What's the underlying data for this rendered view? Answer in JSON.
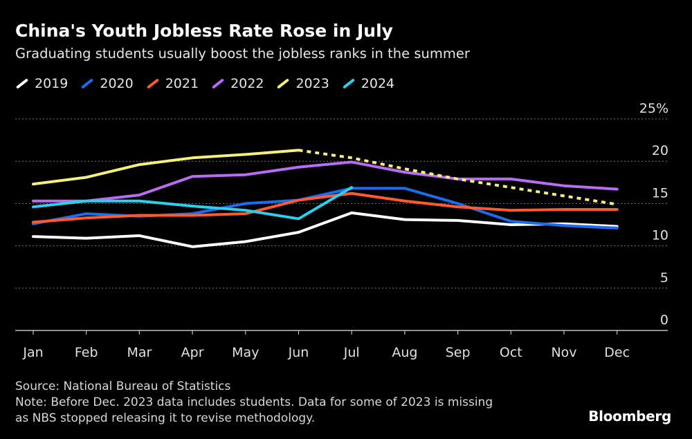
{
  "header": {
    "title": "China's Youth Jobless Rate Rose in July",
    "subtitle": "Graduating students usually boost the jobless ranks in the summer"
  },
  "footer": {
    "source": "Source: National Bureau of Statistics",
    "note_line1": "Note: Before Dec. 2023 data includes students. Data for some of 2023 is missing",
    "note_line2": "as NBS stopped releasing it to revise methodology.",
    "brand": "Bloomberg"
  },
  "chart_data": {
    "type": "line",
    "title": "China's Youth Jobless Rate Rose in July",
    "subtitle": "Graduating students usually boost the jobless ranks in the summer",
    "categories": [
      "Jan",
      "Feb",
      "Mar",
      "Apr",
      "May",
      "Jun",
      "Jul",
      "Aug",
      "Sep",
      "Oct",
      "Nov",
      "Dec"
    ],
    "y_ticks": [
      0,
      5,
      10,
      15,
      20,
      25
    ],
    "y_tick_labels": [
      "0",
      "5",
      "10",
      "15",
      "20",
      "25%"
    ],
    "ylim": [
      0,
      25
    ],
    "grid": true,
    "legend_position": "top-left",
    "series": [
      {
        "name": "2019",
        "color": "#ffffff",
        "values": [
          11.1,
          10.9,
          11.2,
          9.9,
          10.5,
          11.6,
          13.9,
          13.1,
          13.0,
          12.5,
          12.6,
          12.3
        ]
      },
      {
        "name": "2020",
        "color": "#1a6cf0",
        "values": [
          12.6,
          13.8,
          13.5,
          13.8,
          15.0,
          15.4,
          16.8,
          16.8,
          15.0,
          12.9,
          12.4,
          12.1
        ]
      },
      {
        "name": "2021",
        "color": "#ff5a2e",
        "values": [
          12.8,
          13.3,
          13.6,
          13.6,
          13.8,
          15.4,
          16.2,
          15.3,
          14.6,
          14.2,
          14.3,
          14.3
        ]
      },
      {
        "name": "2022",
        "color": "#b96cf2",
        "values": [
          15.3,
          15.3,
          16.0,
          18.2,
          18.4,
          19.3,
          19.9,
          18.7,
          17.9,
          17.9,
          17.1,
          16.7
        ]
      },
      {
        "name": "2023",
        "color": "#f6ef7a",
        "values": [
          17.3,
          18.1,
          19.6,
          20.4,
          20.8,
          21.3,
          null,
          null,
          null,
          null,
          null,
          14.9
        ],
        "dashed_segment": [
          21.3,
          20.4,
          19.1,
          17.9,
          16.9,
          15.9,
          14.9
        ],
        "dashed_from_index": 5
      },
      {
        "name": "2024",
        "color": "#2ad0f0",
        "values": [
          14.6,
          15.3,
          15.3,
          14.7,
          14.2,
          13.2,
          16.9,
          null,
          null,
          null,
          null,
          null
        ]
      }
    ]
  }
}
